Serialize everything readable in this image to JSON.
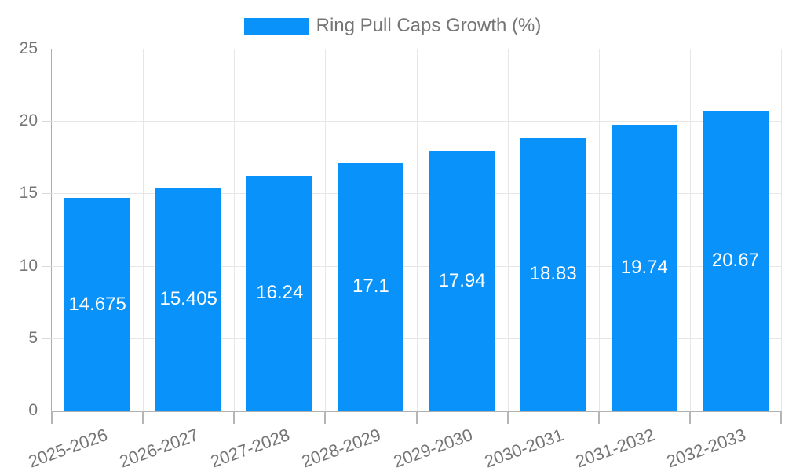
{
  "chart_data": {
    "type": "bar",
    "title": "",
    "legend": "Ring Pull Caps Growth (%)",
    "legend_position": "top-center",
    "categories": [
      "2025-2026",
      "2026-2027",
      "2027-2028",
      "2028-2029",
      "2029-2030",
      "2030-2031",
      "2031-2032",
      "2032-2033"
    ],
    "values": [
      14.675,
      15.405,
      16.24,
      17.1,
      17.94,
      18.83,
      19.74,
      20.67
    ],
    "value_labels": [
      "14.675",
      "15.405",
      "16.24",
      "17.1",
      "17.94",
      "18.83",
      "19.74",
      "20.67"
    ],
    "xlabel": "",
    "ylabel": "",
    "ylim": [
      0,
      25
    ],
    "yticks": [
      0,
      5,
      10,
      15,
      20,
      25
    ],
    "grid": true,
    "colors": {
      "bar": "#0892fa",
      "bar_value_label": "#ffffff",
      "axis_text": "#757575",
      "gridline": "#e6e6e6",
      "axis_line": "#ababab",
      "tick": "#b5b5b5"
    }
  }
}
